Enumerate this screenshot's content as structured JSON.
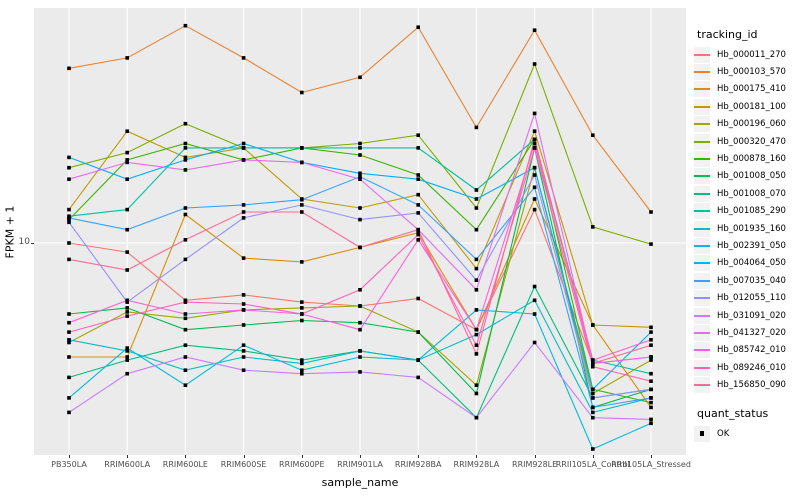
{
  "chart_data": {
    "type": "line",
    "title": "",
    "xlabel": "sample_name",
    "ylabel": "FPKM + 1",
    "y_scale": "log10",
    "y_ticks": [
      "10"
    ],
    "ylim": [
      1.4,
      87
    ],
    "grid": "major-on",
    "panel_bg": "#EBEBEB",
    "grid_color": "#FFFFFF",
    "point_shape": "filled-square",
    "point_color": "#000000",
    "legend_position": "right",
    "categories": [
      "PB350LA",
      "RRIM600LA",
      "RRIM600LE",
      "RRIM600SE",
      "RRIM600PE",
      "RRIM901LA",
      "RRIM928BA",
      "RRIM928LA",
      "RRIM928LE",
      "RRII105LA_Control",
      "RRII105LA_Stressed"
    ],
    "legend": {
      "color_title": "tracking_id",
      "shape_title": "quant_status",
      "shape_items": [
        {
          "label": "OK"
        }
      ]
    },
    "series": [
      {
        "name": "Hb_000011_270",
        "color": "#F8766D",
        "values": [
          10,
          9.2,
          5.9,
          6.2,
          5.8,
          5.6,
          6.0,
          4.5,
          13.6,
          3.3,
          3.5
        ]
      },
      {
        "name": "Hb_000103_570",
        "color": "#EA8331",
        "values": [
          50,
          55,
          74,
          55,
          40,
          46,
          73,
          29,
          71,
          27,
          13.3
        ]
      },
      {
        "name": "Hb_000175_410",
        "color": "#D89000",
        "values": [
          3.5,
          3.5,
          13,
          8.7,
          8.4,
          9.6,
          11,
          4.5,
          15,
          4.7,
          2.2
        ]
      },
      {
        "name": "Hb_000181_100",
        "color": "#C09B00",
        "values": [
          13.6,
          28,
          22,
          24,
          15,
          13.8,
          15.6,
          7.9,
          28,
          4.7,
          4.6
        ]
      },
      {
        "name": "Hb_000196_060",
        "color": "#A3A500",
        "values": [
          4.0,
          5.3,
          5.0,
          5.4,
          5.5,
          5.6,
          4.4,
          2.7,
          20,
          2.5,
          3.4
        ]
      },
      {
        "name": "Hb_000320_470",
        "color": "#7CAE00",
        "values": [
          20,
          23,
          30,
          24,
          24,
          25,
          27,
          13.8,
          52,
          11.6,
          9.9
        ]
      },
      {
        "name": "Hb_000878_160",
        "color": "#39B600",
        "values": [
          12.4,
          21.5,
          25,
          21.5,
          24,
          22.5,
          18.7,
          11.3,
          26,
          2.6,
          2.3
        ]
      },
      {
        "name": "Hb_001008_050",
        "color": "#00BB4E",
        "values": [
          5.2,
          5.5,
          4.5,
          4.7,
          4.9,
          4.8,
          4.4,
          2.5,
          24,
          2.2,
          2.6
        ]
      },
      {
        "name": "Hb_001008_070",
        "color": "#00BF7D",
        "values": [
          2.9,
          3.4,
          3.9,
          3.7,
          3.4,
          3.7,
          3.4,
          2.0,
          6.7,
          2.4,
          2.6
        ]
      },
      {
        "name": "Hb_001085_290",
        "color": "#00C1A3",
        "values": [
          12.8,
          13.6,
          24,
          24,
          24,
          24,
          24,
          16.3,
          26,
          3.4,
          3.0
        ]
      },
      {
        "name": "Hb_001935_160",
        "color": "#00BFC4",
        "values": [
          4.1,
          3.7,
          3.1,
          3.5,
          3.3,
          3.7,
          3.4,
          4.3,
          5.9,
          2.1,
          2.4
        ]
      },
      {
        "name": "Hb_002391_050",
        "color": "#00BAE0",
        "values": [
          2.4,
          3.8,
          2.7,
          3.9,
          3.1,
          3.5,
          3.4,
          5.4,
          5.2,
          1.5,
          1.9
        ]
      },
      {
        "name": "Hb_004064_050",
        "color": "#00B0F6",
        "values": [
          22,
          18,
          21.5,
          25,
          21,
          19,
          18,
          15,
          20,
          2.6,
          4.4
        ]
      },
      {
        "name": "Hb_007035_040",
        "color": "#35A2FF",
        "values": [
          12.6,
          11.3,
          13.8,
          14.2,
          14.9,
          18.4,
          14.2,
          8.6,
          16.7,
          2.2,
          2.4
        ]
      },
      {
        "name": "Hb_012055_110",
        "color": "#9590FF",
        "values": [
          12.1,
          5.8,
          8.6,
          12.6,
          14.2,
          12.4,
          13.2,
          7.1,
          18.7,
          2.4,
          2.6
        ]
      },
      {
        "name": "Hb_031091_020",
        "color": "#C77CFF",
        "values": [
          2.1,
          3.0,
          3.5,
          3.1,
          3.0,
          3.05,
          2.9,
          2.0,
          4.0,
          2.0,
          1.97
        ]
      },
      {
        "name": "Hb_041327_020",
        "color": "#E76BF3",
        "values": [
          18,
          21,
          19.6,
          21.5,
          21,
          18,
          11.3,
          6.5,
          33,
          3.3,
          3.5
        ]
      },
      {
        "name": "Hb_085742_010",
        "color": "#FA62DB",
        "values": [
          4.8,
          5.9,
          5.2,
          5.4,
          5.2,
          4.5,
          10.3,
          4.5,
          25,
          3.4,
          4.1
        ]
      },
      {
        "name": "Hb_089246_010",
        "color": "#FF62BC",
        "values": [
          4.4,
          5.1,
          5.8,
          5.7,
          5.2,
          6.5,
          10.8,
          3.9,
          24,
          3.2,
          2.8
        ]
      },
      {
        "name": "Hb_156850_090",
        "color": "#FF6A98",
        "values": [
          8.6,
          7.8,
          10.3,
          13.3,
          13.3,
          9.6,
          11.3,
          3.6,
          26,
          3.3,
          3.9
        ]
      }
    ]
  }
}
